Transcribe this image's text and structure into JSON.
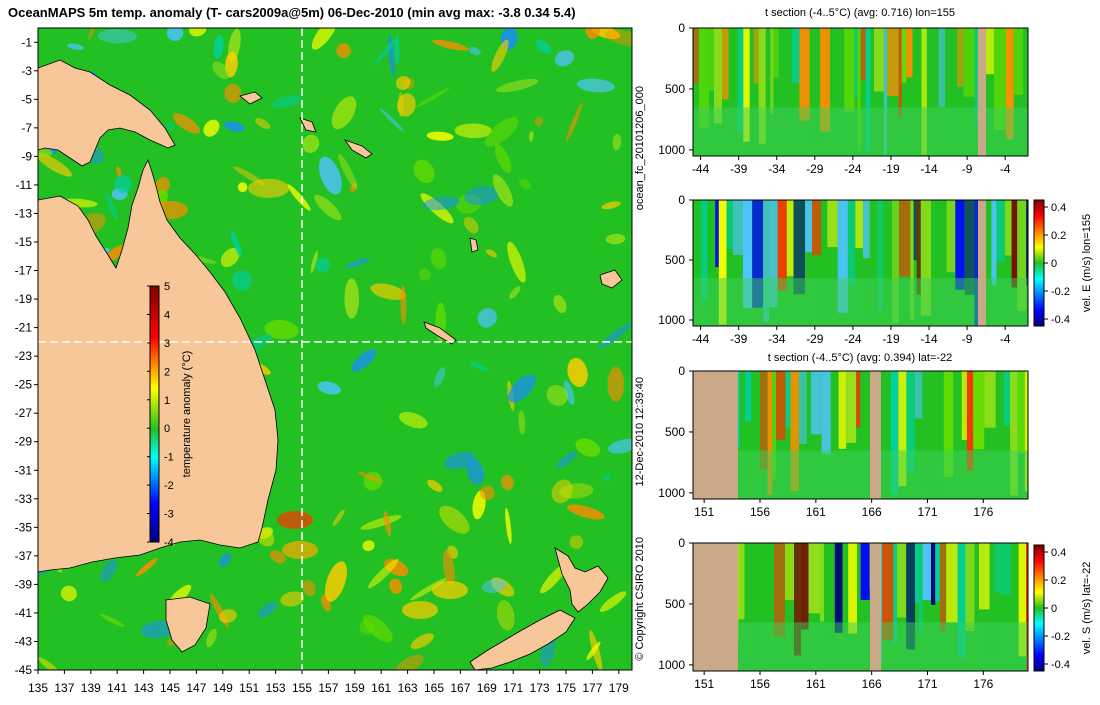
{
  "title": "OceanMAPS 5m temp. anomaly (T- cars2009a@5m) 06-Dec-2010 (min avg max: -3.8 0.34 5.4)",
  "map": {
    "lon_ticks": [
      "135",
      "137",
      "139",
      "141",
      "143",
      "145",
      "147",
      "149",
      "151",
      "153",
      "155",
      "157",
      "159",
      "161",
      "163",
      "165",
      "167",
      "169",
      "171",
      "173",
      "175",
      "177",
      "179"
    ],
    "lat_ticks": [
      "-1",
      "-3",
      "-5",
      "-7",
      "-9",
      "-11",
      "-13",
      "-15",
      "-17",
      "-19",
      "-21",
      "-23",
      "-25",
      "-27",
      "-29",
      "-31",
      "-33",
      "-35",
      "-37",
      "-39",
      "-41",
      "-43",
      "-45"
    ],
    "section_lon": 155,
    "section_lat": -22,
    "colorbar": {
      "label": "temperature anomaly (°C)",
      "ticks": [
        "5",
        "4",
        "3",
        "2",
        "1",
        "0",
        "-1",
        "-2",
        "-3",
        "-4"
      ]
    }
  },
  "side_text": {
    "run": "ocean_fc_20101206_000",
    "made": "12-Dec-2010 12:39:40",
    "copyright": "© Copyright CSIRO 2010"
  },
  "colors": {
    "land": "#f7c79a",
    "section_land": "#c9a987",
    "ocean_base": "#22c022",
    "background": "#ffffff"
  },
  "chart_data": [
    {
      "type": "heatmap",
      "name": "map",
      "variable": "temperature anomaly",
      "units": "°C",
      "stats": {
        "min": -3.8,
        "avg": 0.34,
        "max": 5.4
      },
      "xlim": [
        135,
        180
      ],
      "ylim": [
        -45,
        0
      ],
      "clim": [
        -4,
        5
      ]
    },
    {
      "type": "heatmap",
      "name": "panel1",
      "title": "t section (-4..5°C) (avg: 0.716) lon=155",
      "y_ticks": [
        "0",
        "500",
        "1000"
      ],
      "x_ticks": [
        "-44",
        "-39",
        "-34",
        "-29",
        "-24",
        "-19",
        "-14",
        "-9",
        "-4"
      ],
      "xlim": [
        -45,
        -1
      ],
      "ylim": [
        0,
        1050
      ]
    },
    {
      "type": "heatmap",
      "name": "panel2",
      "title": "",
      "y_ticks": [
        "0",
        "500",
        "1000"
      ],
      "x_ticks": [
        "-44",
        "-39",
        "-34",
        "-29",
        "-24",
        "-19",
        "-14",
        "-9",
        "-4"
      ],
      "colorbar_label": "vel. E (m/s) lon=155",
      "colorbar_ticks": [
        "0.4",
        "0.2",
        "0",
        "-0.2",
        "-0.4"
      ],
      "xlim": [
        -45,
        -1
      ],
      "ylim": [
        0,
        1050
      ]
    },
    {
      "type": "heatmap",
      "name": "panel3",
      "title": "t section (-4..5°C) (avg: 0.394) lat=-22",
      "y_ticks": [
        "0",
        "500",
        "1000"
      ],
      "x_ticks": [
        "151",
        "156",
        "161",
        "166",
        "171",
        "176"
      ],
      "xlim": [
        150,
        180
      ],
      "ylim": [
        0,
        1050
      ]
    },
    {
      "type": "heatmap",
      "name": "panel4",
      "title": "",
      "y_ticks": [
        "0",
        "500",
        "1000"
      ],
      "x_ticks": [
        "151",
        "156",
        "161",
        "166",
        "171",
        "176"
      ],
      "colorbar_label": "vel. S (m/s) lat=-22",
      "colorbar_ticks": [
        "0.4",
        "0.2",
        "0",
        "-0.2",
        "-0.4"
      ],
      "xlim": [
        150,
        180
      ],
      "ylim": [
        0,
        1050
      ]
    }
  ]
}
